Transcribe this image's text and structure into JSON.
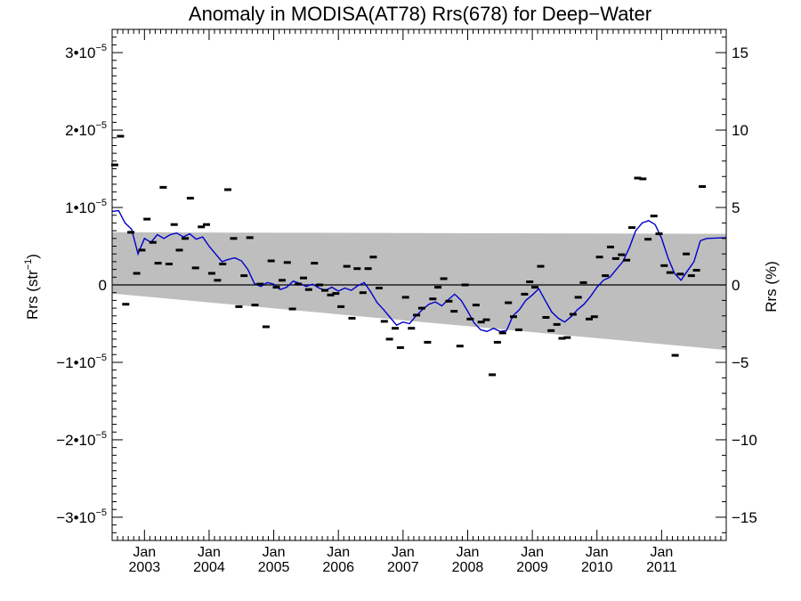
{
  "chart_data": {
    "type": "scatter",
    "title": "Anomaly in MODISA(AT78) Rrs(678) for Deep−Water",
    "ylabel_left": {
      "main": "Rrs (str",
      "sup": "−1",
      "close": ")"
    },
    "ylabel_right": "Rrs (%)",
    "xlim": [
      2002.5,
      2012.0
    ],
    "ylim": [
      -3.3e-05,
      3.3e-05
    ],
    "y2lim": [
      -16.5,
      16.5
    ],
    "x_ticks": [
      {
        "x": 2003.0,
        "top": "Jan",
        "bottom": "2003"
      },
      {
        "x": 2004.0,
        "top": "Jan",
        "bottom": "2004"
      },
      {
        "x": 2005.0,
        "top": "Jan",
        "bottom": "2005"
      },
      {
        "x": 2006.0,
        "top": "Jan",
        "bottom": "2006"
      },
      {
        "x": 2007.0,
        "top": "Jan",
        "bottom": "2007"
      },
      {
        "x": 2008.0,
        "top": "Jan",
        "bottom": "2008"
      },
      {
        "x": 2009.0,
        "top": "Jan",
        "bottom": "2009"
      },
      {
        "x": 2010.0,
        "top": "Jan",
        "bottom": "2010"
      },
      {
        "x": 2011.0,
        "top": "Jan",
        "bottom": "2011"
      }
    ],
    "y_ticks_left": [
      {
        "v": 3e-05,
        "mant": "3",
        "exp": "−5"
      },
      {
        "v": 2e-05,
        "mant": "2",
        "exp": "−5"
      },
      {
        "v": 1e-05,
        "mant": "1",
        "exp": "−5"
      },
      {
        "v": 0,
        "plain": "0"
      },
      {
        "v": -1e-05,
        "mant": "−1",
        "exp": "−5"
      },
      {
        "v": -2e-05,
        "mant": "−2",
        "exp": "−5"
      },
      {
        "v": -3e-05,
        "mant": "−3",
        "exp": "−5"
      }
    ],
    "y_ticks_right": [
      {
        "v": 15,
        "label": "15"
      },
      {
        "v": 10,
        "label": "10"
      },
      {
        "v": 5,
        "label": "5"
      },
      {
        "v": 0,
        "label": "0"
      },
      {
        "v": -5,
        "label": "−5"
      },
      {
        "v": -10,
        "label": "−10"
      },
      {
        "v": -15,
        "label": "−15"
      }
    ],
    "band": {
      "upper": [
        [
          2002.5,
          6.8e-06
        ],
        [
          2012.0,
          6.6e-06
        ]
      ],
      "lower": [
        [
          2002.5,
          -1.1e-06
        ],
        [
          2012.0,
          -8.4e-06
        ]
      ],
      "color": "#bebebe"
    },
    "zero_line": 0,
    "monthly_anomalies": {
      "color": "#000000",
      "points": [
        [
          2002.54,
          1.55e-05
        ],
        [
          2002.63,
          1.92e-05
        ],
        [
          2002.71,
          -2.5e-06
        ],
        [
          2002.79,
          6.8e-06
        ],
        [
          2002.88,
          1.5e-06
        ],
        [
          2002.96,
          4.5e-06
        ],
        [
          2003.04,
          8.5e-06
        ],
        [
          2003.13,
          5.5e-06
        ],
        [
          2003.21,
          2.8e-06
        ],
        [
          2003.29,
          1.26e-05
        ],
        [
          2003.38,
          2.7e-06
        ],
        [
          2003.46,
          7.8e-06
        ],
        [
          2003.54,
          4.5e-06
        ],
        [
          2003.63,
          6e-06
        ],
        [
          2003.71,
          1.12e-05
        ],
        [
          2003.79,
          2.2e-06
        ],
        [
          2003.88,
          7.5e-06
        ],
        [
          2003.96,
          7.8e-06
        ],
        [
          2004.04,
          1.5e-06
        ],
        [
          2004.13,
          6e-07
        ],
        [
          2004.21,
          2.7e-06
        ],
        [
          2004.29,
          1.23e-05
        ],
        [
          2004.38,
          6e-06
        ],
        [
          2004.46,
          -2.8e-06
        ],
        [
          2004.54,
          1.2e-06
        ],
        [
          2004.63,
          6.1e-06
        ],
        [
          2004.71,
          -2.6e-06
        ],
        [
          2004.79,
          1e-07
        ],
        [
          2004.88,
          -5.4e-06
        ],
        [
          2004.96,
          3.1e-06
        ],
        [
          2005.04,
          -3e-07
        ],
        [
          2005.13,
          6e-07
        ],
        [
          2005.21,
          2.9e-06
        ],
        [
          2005.29,
          -3.1e-06
        ],
        [
          2005.38,
          1e-07
        ],
        [
          2005.46,
          9e-07
        ],
        [
          2005.54,
          -6e-07
        ],
        [
          2005.63,
          2.8e-06
        ],
        [
          2005.71,
          0.0
        ],
        [
          2005.79,
          -7e-07
        ],
        [
          2005.88,
          -1.3e-06
        ],
        [
          2005.96,
          -1.1e-06
        ],
        [
          2006.04,
          -2.8e-06
        ],
        [
          2006.13,
          2.4e-06
        ],
        [
          2006.21,
          -4.3e-06
        ],
        [
          2006.29,
          2.1e-06
        ],
        [
          2006.38,
          -1e-06
        ],
        [
          2006.46,
          2.1e-06
        ],
        [
          2006.54,
          3.6e-06
        ],
        [
          2006.63,
          -4e-07
        ],
        [
          2006.71,
          -4.7e-06
        ],
        [
          2006.79,
          -7e-06
        ],
        [
          2006.88,
          -5.6e-06
        ],
        [
          2006.96,
          -8.1e-06
        ],
        [
          2007.04,
          -1.6e-06
        ],
        [
          2007.13,
          -5.6e-06
        ],
        [
          2007.21,
          -3.9e-06
        ],
        [
          2007.29,
          -3e-06
        ],
        [
          2007.38,
          -7.4e-06
        ],
        [
          2007.46,
          -1.8e-06
        ],
        [
          2007.54,
          -3e-07
        ],
        [
          2007.63,
          8e-07
        ],
        [
          2007.71,
          -2.1e-06
        ],
        [
          2007.79,
          -3.4e-06
        ],
        [
          2007.88,
          -7.9e-06
        ],
        [
          2007.96,
          0.0
        ],
        [
          2008.04,
          -4.4e-06
        ],
        [
          2008.13,
          -2.6e-06
        ],
        [
          2008.21,
          -4.8e-06
        ],
        [
          2008.29,
          -4.5e-06
        ],
        [
          2008.38,
          -1.16e-05
        ],
        [
          2008.46,
          -7.4e-06
        ],
        [
          2008.54,
          -6.2e-06
        ],
        [
          2008.63,
          -2.3e-06
        ],
        [
          2008.71,
          -4.1e-06
        ],
        [
          2008.79,
          -5.8e-06
        ],
        [
          2008.88,
          -1.2e-06
        ],
        [
          2008.96,
          4e-07
        ],
        [
          2009.04,
          -3e-07
        ],
        [
          2009.13,
          2.4e-06
        ],
        [
          2009.21,
          -4.2e-06
        ],
        [
          2009.29,
          -5.9e-06
        ],
        [
          2009.38,
          -5.1e-06
        ],
        [
          2009.46,
          -6.9e-06
        ],
        [
          2009.54,
          -6.8e-06
        ],
        [
          2009.63,
          -3.8e-06
        ],
        [
          2009.71,
          -1.6e-06
        ],
        [
          2009.79,
          3e-07
        ],
        [
          2009.88,
          -4.4e-06
        ],
        [
          2009.96,
          -4.1e-06
        ],
        [
          2010.04,
          3.6e-06
        ],
        [
          2010.13,
          1.2e-06
        ],
        [
          2010.21,
          4.9e-06
        ],
        [
          2010.29,
          3.4e-06
        ],
        [
          2010.38,
          3.9e-06
        ],
        [
          2010.46,
          3.2e-06
        ],
        [
          2010.54,
          7.4e-06
        ],
        [
          2010.63,
          1.38e-05
        ],
        [
          2010.71,
          1.37e-05
        ],
        [
          2010.79,
          5.9e-06
        ],
        [
          2010.88,
          8.9e-06
        ],
        [
          2010.96,
          6.6e-06
        ],
        [
          2011.04,
          2.5e-06
        ],
        [
          2011.13,
          1.6e-06
        ],
        [
          2011.21,
          -9.1e-06
        ],
        [
          2011.29,
          1.4e-06
        ],
        [
          2011.38,
          4e-06
        ],
        [
          2011.46,
          1.2e-06
        ],
        [
          2011.54,
          1.9e-06
        ],
        [
          2011.63,
          1.27e-05
        ]
      ]
    },
    "smoothed_mean": {
      "color": "#0000cc",
      "points": [
        [
          2002.5,
          9.5e-06
        ],
        [
          2002.6,
          9.6e-06
        ],
        [
          2002.7,
          8e-06
        ],
        [
          2002.8,
          7.2e-06
        ],
        [
          2002.9,
          4e-06
        ],
        [
          2003.0,
          6e-06
        ],
        [
          2003.1,
          5.5e-06
        ],
        [
          2003.2,
          6.5e-06
        ],
        [
          2003.3,
          6e-06
        ],
        [
          2003.4,
          6.5e-06
        ],
        [
          2003.5,
          6.7e-06
        ],
        [
          2003.6,
          6.2e-06
        ],
        [
          2003.7,
          6.6e-06
        ],
        [
          2003.8,
          5.9e-06
        ],
        [
          2003.9,
          6.2e-06
        ],
        [
          2004.0,
          5e-06
        ],
        [
          2004.1,
          4e-06
        ],
        [
          2004.2,
          3e-06
        ],
        [
          2004.3,
          3.3e-06
        ],
        [
          2004.4,
          3.5e-06
        ],
        [
          2004.5,
          3.1e-06
        ],
        [
          2004.6,
          2e-06
        ],
        [
          2004.7,
          2e-07
        ],
        [
          2004.8,
          -2e-07
        ],
        [
          2004.9,
          3e-07
        ],
        [
          2005.0,
          1e-07
        ],
        [
          2005.1,
          -6e-07
        ],
        [
          2005.2,
          -3e-07
        ],
        [
          2005.3,
          5e-07
        ],
        [
          2005.4,
          2e-07
        ],
        [
          2005.5,
          -2e-07
        ],
        [
          2005.6,
          1e-07
        ],
        [
          2005.7,
          -4e-07
        ],
        [
          2005.8,
          -7e-07
        ],
        [
          2005.9,
          -3e-07
        ],
        [
          2006.0,
          -8e-07
        ],
        [
          2006.1,
          -4e-07
        ],
        [
          2006.2,
          -7e-07
        ],
        [
          2006.3,
          -1e-07
        ],
        [
          2006.4,
          3e-07
        ],
        [
          2006.5,
          -9e-07
        ],
        [
          2006.6,
          -2.3e-06
        ],
        [
          2006.7,
          -3.2e-06
        ],
        [
          2006.8,
          -4.2e-06
        ],
        [
          2006.9,
          -5.2e-06
        ],
        [
          2007.0,
          -4.8e-06
        ],
        [
          2007.1,
          -5e-06
        ],
        [
          2007.2,
          -4e-06
        ],
        [
          2007.3,
          -3.2e-06
        ],
        [
          2007.4,
          -2.5e-06
        ],
        [
          2007.5,
          -2.2e-06
        ],
        [
          2007.6,
          -2.7e-06
        ],
        [
          2007.7,
          -1.9e-06
        ],
        [
          2007.8,
          -1.2e-06
        ],
        [
          2007.9,
          -2e-06
        ],
        [
          2008.0,
          -3.4e-06
        ],
        [
          2008.1,
          -4.9e-06
        ],
        [
          2008.2,
          -5.8e-06
        ],
        [
          2008.3,
          -6e-06
        ],
        [
          2008.4,
          -5.6e-06
        ],
        [
          2008.5,
          -6e-06
        ],
        [
          2008.6,
          -5.9e-06
        ],
        [
          2008.7,
          -4e-06
        ],
        [
          2008.8,
          -3.2e-06
        ],
        [
          2008.9,
          -2e-06
        ],
        [
          2009.0,
          -1.3e-06
        ],
        [
          2009.1,
          -5e-07
        ],
        [
          2009.2,
          -2e-06
        ],
        [
          2009.3,
          -3.5e-06
        ],
        [
          2009.4,
          -4.3e-06
        ],
        [
          2009.5,
          -4.8e-06
        ],
        [
          2009.6,
          -4.1e-06
        ],
        [
          2009.7,
          -3.2e-06
        ],
        [
          2009.8,
          -2.5e-06
        ],
        [
          2009.9,
          -1.5e-06
        ],
        [
          2010.0,
          -3e-07
        ],
        [
          2010.1,
          6e-07
        ],
        [
          2010.2,
          1e-06
        ],
        [
          2010.3,
          2e-06
        ],
        [
          2010.4,
          3e-06
        ],
        [
          2010.5,
          4.8e-06
        ],
        [
          2010.6,
          7e-06
        ],
        [
          2010.7,
          8e-06
        ],
        [
          2010.8,
          8.3e-06
        ],
        [
          2010.9,
          7.8e-06
        ],
        [
          2011.0,
          6e-06
        ],
        [
          2011.1,
          3.5e-06
        ],
        [
          2011.2,
          1.5e-06
        ],
        [
          2011.3,
          6e-07
        ],
        [
          2011.4,
          1.8e-06
        ],
        [
          2011.5,
          3e-06
        ],
        [
          2011.6,
          5.7e-06
        ],
        [
          2011.7,
          6e-06
        ],
        [
          2012.0,
          6.1e-06
        ]
      ]
    }
  }
}
